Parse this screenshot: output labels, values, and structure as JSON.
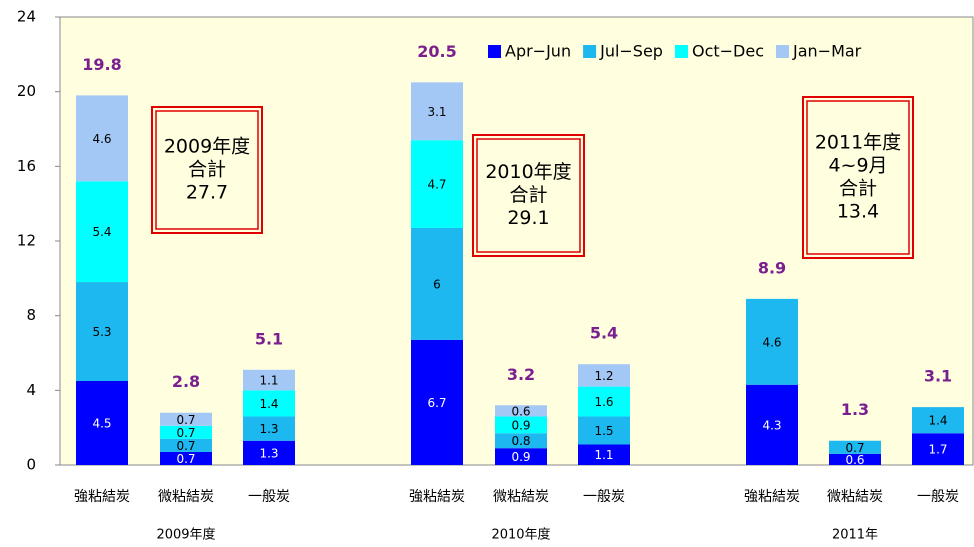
{
  "chart_data": {
    "type": "stacked_bar",
    "categories": [
      "強粘結炭",
      "微粘結炭",
      "一般炭",
      "強粘結炭",
      "微粘結炭",
      "一般炭",
      "強粘結炭",
      "微粘結炭",
      "一般炭"
    ],
    "groups": [
      "2009年度",
      "2010年度",
      "2011年"
    ],
    "series": [
      {
        "name": "Apr−Jun",
        "color": "#0000ff",
        "values": [
          4.5,
          0.7,
          1.3,
          6.7,
          0.9,
          1.1,
          4.3,
          0.6,
          1.7
        ]
      },
      {
        "name": "Jul−Sep",
        "color": "#1cb8ef",
        "values": [
          5.3,
          0.7,
          1.3,
          6.0,
          0.8,
          1.5,
          4.6,
          0.7,
          1.4
        ]
      },
      {
        "name": "Oct−Dec",
        "color": "#00ffff",
        "values": [
          5.4,
          0.7,
          1.4,
          4.7,
          0.9,
          1.6,
          null,
          null,
          null
        ]
      },
      {
        "name": "Jan−Mar",
        "color": "#a3c8f5",
        "values": [
          4.6,
          0.7,
          1.1,
          3.1,
          0.6,
          1.2,
          null,
          null,
          null
        ]
      }
    ],
    "totals": [
      19.8,
      2.8,
      5.1,
      20.5,
      3.2,
      5.4,
      8.9,
      1.3,
      3.1
    ],
    "annotations": [
      {
        "lines": [
          "2009年度",
          "合計",
          "27.7"
        ]
      },
      {
        "lines": [
          "2010年度",
          "合計",
          "29.1"
        ]
      },
      {
        "lines": [
          "2011年度",
          "4~9月",
          "合計",
          "13.4"
        ]
      }
    ],
    "ylim": [
      0,
      24
    ],
    "yticks": [
      0,
      4,
      8,
      12,
      16,
      20,
      24
    ]
  }
}
